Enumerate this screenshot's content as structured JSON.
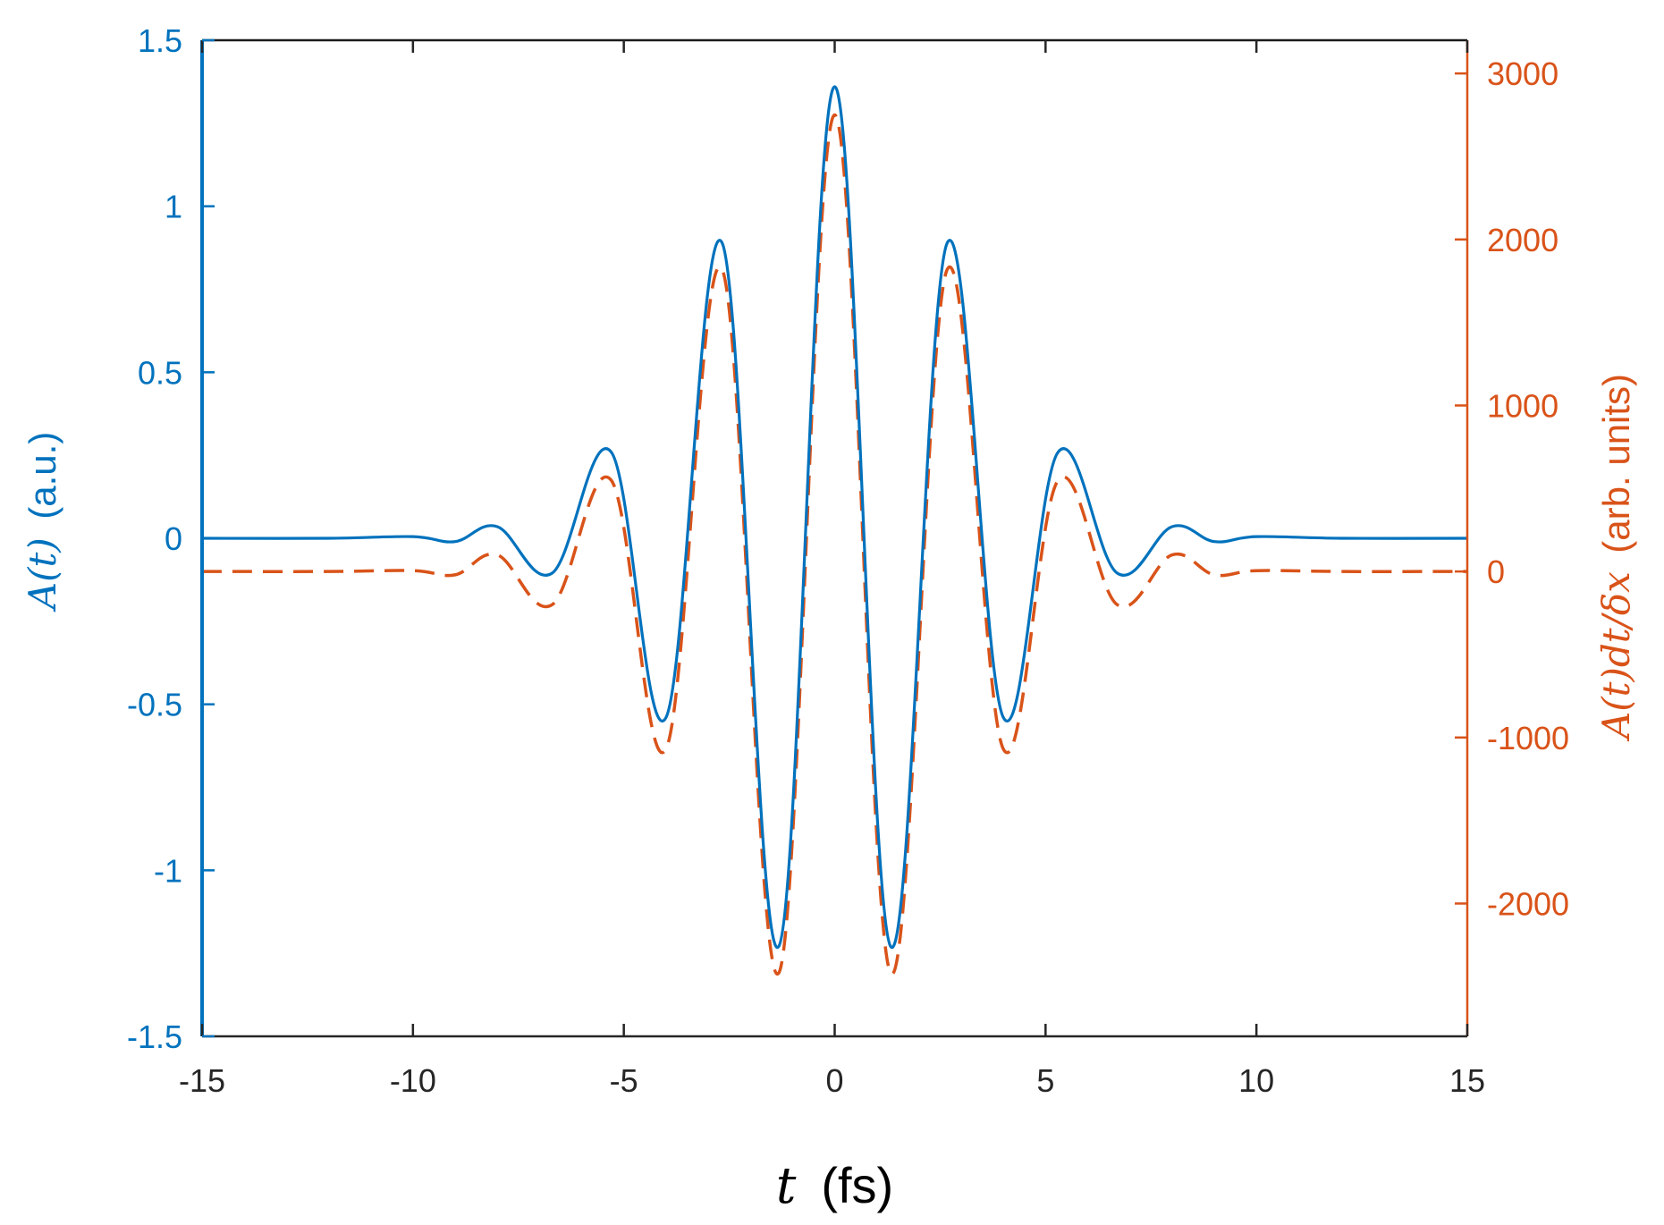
{
  "chart_data": {
    "type": "line",
    "title": "",
    "x_axis": {
      "label_var": "t",
      "label_unit": "(fs)",
      "range": [
        -15,
        15
      ],
      "ticks": [
        -15,
        -10,
        -5,
        0,
        5,
        10,
        15
      ],
      "tick_labels": [
        "-15",
        "-10",
        "-5",
        "0",
        "5",
        "10",
        "15"
      ]
    },
    "y_left": {
      "label_math": "A(t)",
      "label_unit": "(a.u.)",
      "range": [
        -1.5,
        1.5
      ],
      "ticks": [
        -1.5,
        -1,
        -0.5,
        0,
        0.5,
        1,
        1.5
      ],
      "tick_labels": [
        "-1.5",
        "-1",
        "-0.5",
        "0",
        "0.5",
        "1",
        "1.5"
      ],
      "color": "#0072BD"
    },
    "y_right": {
      "label_math": "A(t)dt/δx",
      "label_unit": "(arb. units)",
      "range": [
        -2800,
        3200
      ],
      "ticks": [
        -2000,
        -1000,
        0,
        1000,
        2000,
        3000
      ],
      "tick_labels": [
        "-2000",
        "-1000",
        "0",
        "1000",
        "2000",
        "3000"
      ],
      "color": "#D95319"
    },
    "grid": false,
    "legend": "none",
    "series": [
      {
        "axis": "left",
        "style": "solid",
        "color": "#0072BD",
        "x": [
          -15,
          -12,
          -10,
          -9,
          -8,
          -6.7,
          -5.3,
          -4,
          -2.67,
          -1.33,
          0,
          1.33,
          2.67,
          4,
          5.3,
          6.7,
          8,
          9,
          10,
          12,
          15
        ],
        "y": [
          0,
          0,
          0.005,
          -0.01,
          0.035,
          -0.105,
          0.26,
          -0.54,
          0.89,
          -1.23,
          1.36,
          -1.23,
          0.89,
          -0.54,
          0.26,
          -0.105,
          0.035,
          -0.01,
          0.005,
          0,
          0
        ]
      },
      {
        "axis": "right",
        "style": "dashed",
        "color": "#D95319",
        "x": [
          -15,
          -12,
          -10,
          -9,
          -8,
          -6.7,
          -5.3,
          -4,
          -2.67,
          -1.33,
          0,
          1.33,
          2.67,
          4,
          5.3,
          6.7,
          8,
          9,
          10,
          12,
          15
        ],
        "y": [
          0,
          0,
          5,
          -20,
          100,
          -200,
          550,
          -1070,
          1820,
          -2420,
          2750,
          -2420,
          1820,
          -1070,
          550,
          -200,
          100,
          -20,
          5,
          0,
          0
        ]
      }
    ]
  }
}
